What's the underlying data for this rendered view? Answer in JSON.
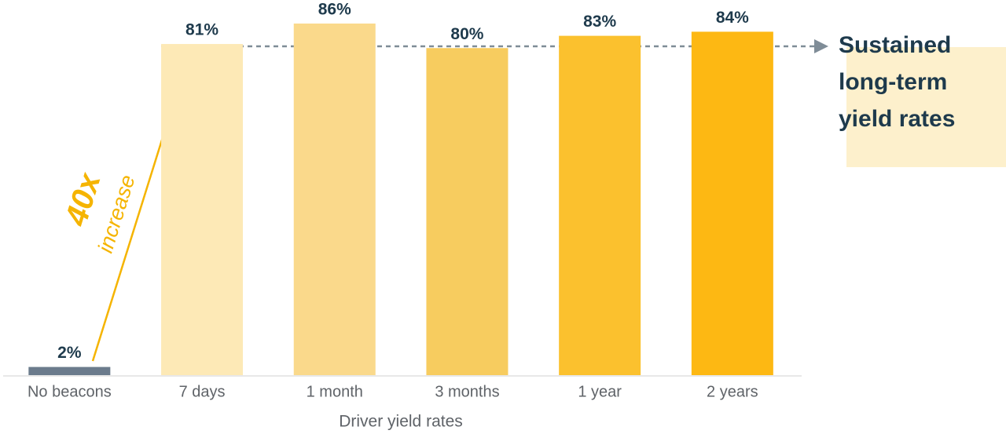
{
  "chart_data": {
    "type": "bar",
    "categories": [
      "No beacons",
      "7 days",
      "1 month",
      "3 months",
      "1 year",
      "2 years"
    ],
    "values": [
      2,
      81,
      86,
      80,
      83,
      84
    ],
    "value_labels": [
      "2%",
      "81%",
      "86%",
      "80%",
      "83%",
      "84%"
    ],
    "colors": [
      "#6b7b8c",
      "#fde9b6",
      "#fad98b",
      "#f7cc5f",
      "#fbc12e",
      "#fdb813"
    ],
    "x_label": "Driver yield rates",
    "increase_annotation": {
      "multiple": "40x",
      "word": "increase"
    },
    "sustained_annotation": [
      "Sustained",
      "long-term",
      "yield rates"
    ]
  }
}
